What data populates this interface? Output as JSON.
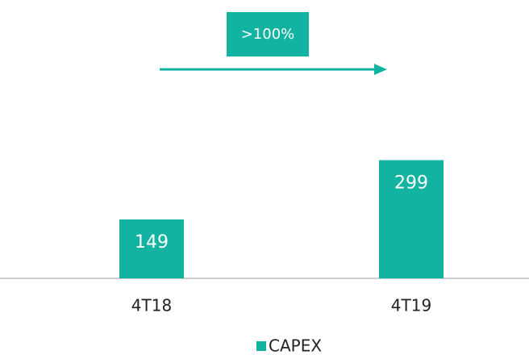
{
  "chart_data": {
    "type": "bar",
    "categories": [
      "4T18",
      "4T19"
    ],
    "series": [
      {
        "name": "CAPEX",
        "color": "#12b3a0",
        "values": [
          149,
          299
        ]
      }
    ],
    "annotation": ">100%"
  }
}
